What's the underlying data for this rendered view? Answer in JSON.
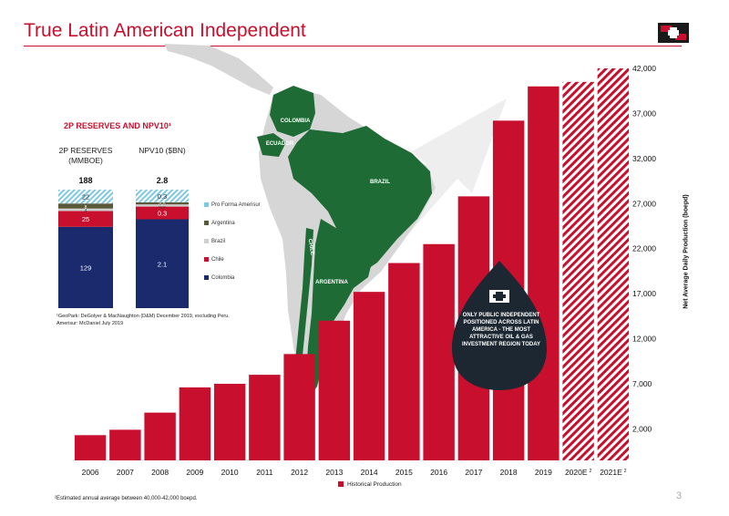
{
  "page": {
    "title": "True Latin American Independent",
    "page_number": "3",
    "footnote_bottom": "²Estimated annual average between 40,000-42,000 boepd.",
    "drop_text": "ONLY PUBLIC INDEPENDENT POSITIONED ACROSS LATIN AMERICA - THE MOST ATTRACTIVE OIL & GAS INVESTMENT REGION TODAY"
  },
  "countries": [
    "COLOMBIA",
    "ECUADOR",
    "BRAZIL",
    "CHILE",
    "ARGENTINA"
  ],
  "colors": {
    "brand_red": "#c8102e",
    "map_green": "#1e6b35",
    "map_grey": "#d6d6d6",
    "colombia_navy": "#1a2a6c",
    "brazil_grey": "#cfcfcf",
    "argentina_olive": "#5a5a3a",
    "pro_forma_blue": "#7ec8e3",
    "drop_dark": "#1c2732"
  },
  "chart_data": [
    {
      "type": "bar",
      "categories": [
        "2006",
        "2007",
        "2008",
        "2009",
        "2010",
        "2011",
        "2012",
        "2013",
        "2014",
        "2015",
        "2016",
        "2017",
        "2018",
        "2019",
        "2020E",
        "2021E"
      ],
      "category_superscripts": [
        "",
        "",
        "",
        "",
        "",
        "",
        "",
        "",
        "",
        "",
        "",
        "",
        "",
        "",
        "2",
        "2"
      ],
      "series": [
        {
          "name": "Historical Production",
          "values": [
            1300,
            1900,
            3800,
            6600,
            7000,
            8000,
            10300,
            14000,
            17200,
            20400,
            22500,
            27800,
            36200,
            40000,
            40500,
            42000
          ],
          "estimated": [
            false,
            false,
            false,
            false,
            false,
            false,
            false,
            false,
            false,
            false,
            false,
            false,
            false,
            false,
            true,
            true
          ]
        }
      ],
      "ylabel": "Net Average Daily Production (boepd)",
      "yticks": [
        "2,000",
        "7,000",
        "12,000",
        "17,000",
        "22,000",
        "27,000",
        "32,000",
        "37,000",
        "42,000"
      ],
      "ylim": [
        -1500,
        42000
      ],
      "legend": "bottom-center",
      "grid": false
    },
    {
      "type": "bar",
      "stacked": true,
      "title": "2P RESERVES AND NPV10¹",
      "columns": [
        {
          "header": "2P RESERVES (MMBOE)",
          "total": "188",
          "segments": [
            {
              "series": "Colombia",
              "value": 129,
              "label": "129"
            },
            {
              "series": "Chile",
              "value": 25,
              "label": "25"
            },
            {
              "series": "Brazil",
              "value": 4,
              "label": "4"
            },
            {
              "series": "Argentina",
              "value": 8,
              "label": "8"
            },
            {
              "series": "Pro Forma Amerisur",
              "value": 22,
              "label": "22"
            }
          ]
        },
        {
          "header": "NPV10 ($BN)",
          "total": "2.8",
          "segments": [
            {
              "series": "Colombia",
              "value": 2.1,
              "label": "2.1"
            },
            {
              "series": "Chile",
              "value": 0.3,
              "label": "0.3"
            },
            {
              "series": "Brazil",
              "value": 0.05,
              "label": "0.0"
            },
            {
              "series": "Argentina",
              "value": 0.05,
              "label": "0.0"
            },
            {
              "series": "Pro Forma Amerisur",
              "value": 0.3,
              "label": "0.3"
            }
          ]
        }
      ],
      "legend_entries": [
        "Pro Forma Amerisur",
        "Argentina",
        "Brazil",
        "Chile",
        "Colombia"
      ],
      "footnote": "¹GeoPark: DeGolyer & MacNaughton (D&M) December 2019, excluding Peru. Amerisur: McDaniel July 2019"
    }
  ]
}
